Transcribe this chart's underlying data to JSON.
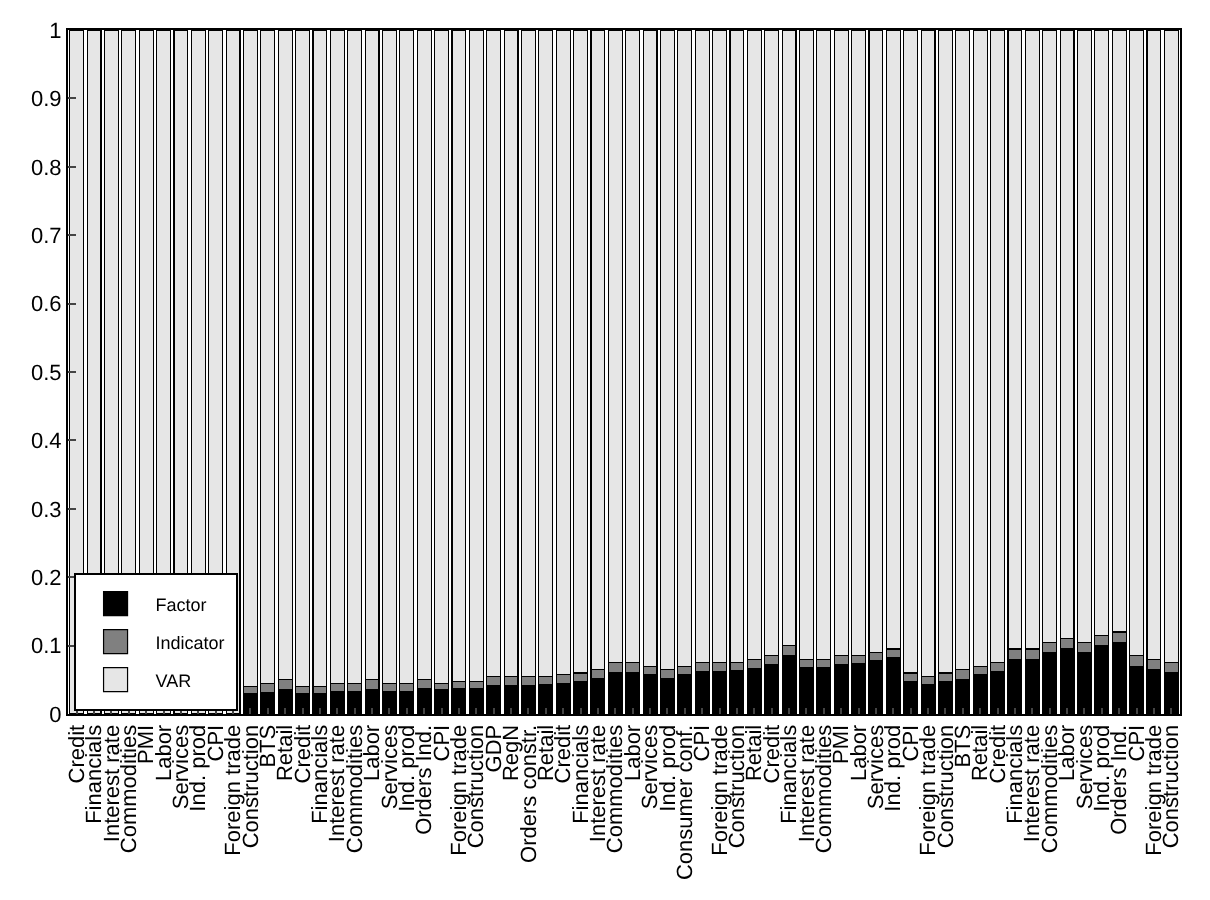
{
  "chart_data": {
    "type": "bar",
    "stacked": true,
    "categories": [
      "Credit",
      "Financials",
      "Interest rate",
      "Commodities",
      "PMI",
      "Labor",
      "Services",
      "Ind. prod",
      "CPI",
      "Foreign trade",
      "Construction",
      "BTS",
      "Retail",
      "Credit",
      "Financials",
      "Interest rate",
      "Commodities",
      "Labor",
      "Services",
      "Ind. prod",
      "Orders Ind.",
      "CPI",
      "Foreign trade",
      "Construction",
      "GDP",
      "RegN",
      "Orders constr.",
      "Retail",
      "Credit",
      "Financials",
      "Interest rate",
      "Commodities",
      "Labor",
      "Services",
      "Ind. prod",
      "Consumer conf.",
      "CPI",
      "Foreign trade",
      "Construction",
      "Retail",
      "Credit",
      "Financials",
      "Interest rate",
      "Commodities",
      "PMI",
      "Labor",
      "Services",
      "Ind. prod",
      "CPI",
      "Foreign trade",
      "Construction",
      "BTS",
      "Retail",
      "Credit",
      "Financials",
      "Interest rate",
      "Commodities",
      "Labor",
      "Services",
      "Ind. prod",
      "Orders Ind.",
      "CPI",
      "Foreign trade",
      "Construction"
    ],
    "series": [
      {
        "name": "Factor",
        "color": "#000000",
        "values": [
          null,
          null,
          null,
          null,
          null,
          null,
          null,
          null,
          null,
          null,
          0.03,
          0.032,
          0.035,
          0.03,
          0.03,
          0.033,
          0.033,
          0.035,
          0.033,
          0.033,
          0.037,
          0.035,
          0.037,
          0.037,
          0.042,
          0.042,
          0.042,
          0.043,
          0.045,
          0.048,
          0.052,
          0.06,
          0.06,
          0.057,
          0.052,
          0.057,
          0.062,
          0.062,
          0.063,
          0.067,
          0.072,
          0.085,
          0.068,
          0.068,
          0.072,
          0.073,
          0.078,
          0.082,
          0.048,
          0.043,
          0.047,
          0.05,
          0.057,
          0.062,
          0.08,
          0.08,
          0.09,
          0.095,
          0.09,
          0.1,
          0.105,
          0.07,
          0.065,
          0.06
        ]
      },
      {
        "name": "Indicator",
        "color": "#808080",
        "values": [
          null,
          null,
          null,
          null,
          null,
          null,
          null,
          null,
          null,
          null,
          0.01,
          0.013,
          0.015,
          0.01,
          0.01,
          0.012,
          0.012,
          0.015,
          0.012,
          0.012,
          0.013,
          0.01,
          0.011,
          0.011,
          0.013,
          0.013,
          0.013,
          0.012,
          0.013,
          0.012,
          0.013,
          0.015,
          0.015,
          0.013,
          0.013,
          0.013,
          0.013,
          0.013,
          0.012,
          0.013,
          0.013,
          0.015,
          0.012,
          0.012,
          0.013,
          0.012,
          0.012,
          0.013,
          0.012,
          0.012,
          0.013,
          0.015,
          0.013,
          0.013,
          0.015,
          0.015,
          0.015,
          0.015,
          0.015,
          0.015,
          0.015,
          0.015,
          0.015,
          0.015
        ]
      },
      {
        "name": "VAR",
        "color": "#e6e6e6",
        "values": [
          1,
          1,
          1,
          1,
          1,
          1,
          1,
          1,
          1,
          1,
          0.96,
          0.955,
          0.95,
          0.96,
          0.96,
          0.955,
          0.955,
          0.95,
          0.955,
          0.955,
          0.95,
          0.955,
          0.952,
          0.952,
          0.945,
          0.945,
          0.945,
          0.945,
          0.942,
          0.94,
          0.935,
          0.925,
          0.925,
          0.93,
          0.935,
          0.93,
          0.925,
          0.925,
          0.925,
          0.92,
          0.915,
          0.9,
          0.92,
          0.92,
          0.915,
          0.915,
          0.91,
          0.905,
          0.94,
          0.945,
          0.94,
          0.935,
          0.93,
          0.925,
          0.905,
          0.905,
          0.895,
          0.89,
          0.895,
          0.885,
          0.88,
          0.915,
          0.92,
          0.925
        ]
      }
    ],
    "ylim": [
      0,
      1
    ],
    "yticks": [
      0,
      0.1,
      0.2,
      0.3,
      0.4,
      0.5,
      0.6,
      0.7,
      0.8,
      0.9,
      1
    ],
    "legend": "bottom left"
  }
}
